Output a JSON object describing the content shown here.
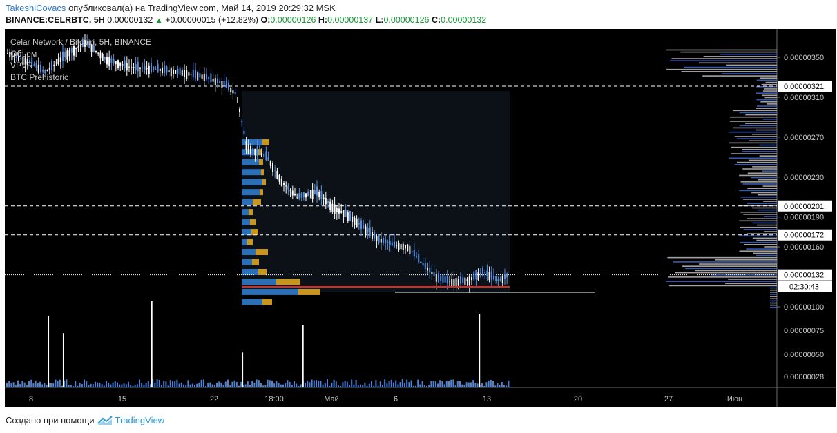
{
  "header": {
    "author": "TakeshiCovacs",
    "published_text": "опубликовал(а) на TradingView.com, Май 14, 2019 20:29:32 MSK",
    "symbol": "BINANCE:CELRBTC, 5H",
    "last_price": "0.00000132",
    "up_arrow": "▲",
    "change": "+0.00000015 (+12.82%)",
    "o_label": "O:",
    "o_value": "0.00000126",
    "h_label": "H:",
    "h_value": "0.00000137",
    "l_label": "L:",
    "l_value": "0.00000126",
    "c_label": "C:",
    "c_value": "0.00000132"
  },
  "legend": {
    "title": "Celar Network / Bitcoin, 5H, BINANCE",
    "items": [
      "Объем",
      "VPVR",
      "BTC Prehistoric"
    ]
  },
  "footer": {
    "made_with": "Создано при помощи",
    "brand": "TradingView"
  },
  "chart_data": {
    "type": "candlestick",
    "price_axis_labels": [
      {
        "value": 3.5e-06,
        "text": "0.00000350"
      },
      {
        "value": 3.1e-06,
        "text": "0.00000310"
      },
      {
        "value": 2.7e-06,
        "text": "0.00000270"
      },
      {
        "value": 2.3e-06,
        "text": "0.00000230"
      },
      {
        "value": 1.9e-06,
        "text": "0.00000190"
      },
      {
        "value": 1.6e-06,
        "text": "0.00000160"
      },
      {
        "value": 1e-06,
        "text": "0.00000100"
      }
    ],
    "volume_axis_labels": [
      "0.00000075",
      "0.00000050",
      "0.00000028"
    ],
    "level_lines": [
      {
        "value": 3.21e-06,
        "text": "0.00000321",
        "style": "dashed"
      },
      {
        "value": 2.01e-06,
        "text": "0.00000201",
        "style": "dashed"
      },
      {
        "value": 1.72e-06,
        "text": "0.00000172",
        "style": "dashed"
      },
      {
        "value": 1.32e-06,
        "text": "0.00000132",
        "style": "dotted",
        "current": true
      }
    ],
    "countdown": "02:30:43",
    "time_axis_labels": [
      "8",
      "15",
      "22",
      "18:00",
      "Май",
      "6",
      "13",
      "20",
      "27",
      "Июн"
    ],
    "price_path": [
      [
        0,
        3.55e-06
      ],
      [
        0.05,
        3.45e-06
      ],
      [
        0.08,
        3.35e-06
      ],
      [
        0.12,
        3.52e-06
      ],
      [
        0.16,
        3.65e-06
      ],
      [
        0.2,
        3.48e-06
      ],
      [
        0.25,
        3.4e-06
      ],
      [
        0.3,
        3.38e-06
      ],
      [
        0.35,
        3.35e-06
      ],
      [
        0.4,
        3.3e-06
      ],
      [
        0.44,
        3.22e-06
      ],
      [
        0.46,
        3.12e-06
      ],
      [
        0.48,
        2.6e-06
      ],
      [
        0.52,
        2.5e-06
      ],
      [
        0.55,
        2.25e-06
      ],
      [
        0.58,
        2.1e-06
      ],
      [
        0.62,
        2.15e-06
      ],
      [
        0.65,
        2e-06
      ],
      [
        0.68,
        1.92e-06
      ],
      [
        0.71,
        1.8e-06
      ],
      [
        0.74,
        1.68e-06
      ],
      [
        0.77,
        1.62e-06
      ],
      [
        0.8,
        1.6e-06
      ],
      [
        0.83,
        1.42e-06
      ],
      [
        0.86,
        1.28e-06
      ],
      [
        0.89,
        1.25e-06
      ],
      [
        0.92,
        1.27e-06
      ],
      [
        0.95,
        1.35e-06
      ],
      [
        0.98,
        1.26e-06
      ],
      [
        1.0,
        1.32e-06
      ]
    ],
    "volume_spikes": [
      {
        "pos": 0.085,
        "value": 9e-07
      },
      {
        "pos": 0.115,
        "value": 7.2e-07
      },
      {
        "pos": 0.29,
        "value": 1.05e-06
      },
      {
        "pos": 0.59,
        "value": 8e-07
      },
      {
        "pos": 0.94,
        "value": 9.2e-07
      },
      {
        "pos": 0.47,
        "value": 5.2e-07
      }
    ],
    "colors": {
      "candle": "#5b8fdc",
      "volume": "#4f83d6",
      "vp_box_blue": "#2b6fb6",
      "vp_box_gold": "#c8961e",
      "poc_line": "#e0281f",
      "support_line": "#ffffff"
    }
  }
}
